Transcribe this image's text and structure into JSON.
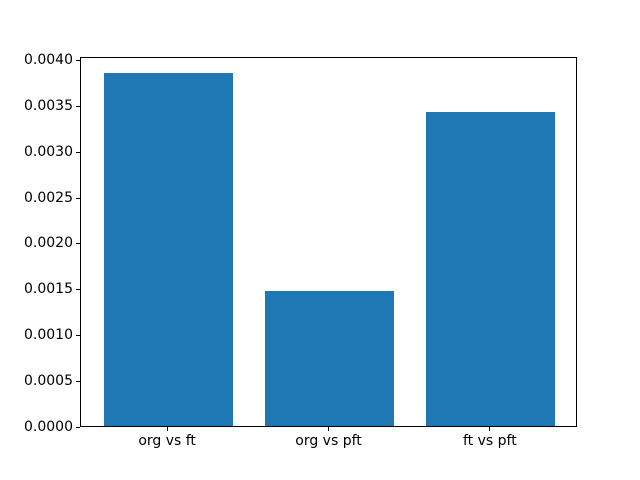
{
  "figure": {
    "background": "#ffffff"
  },
  "chart_data": {
    "type": "bar",
    "title": "",
    "xlabel": "",
    "ylabel": "",
    "categories": [
      "org vs ft",
      "org vs pft",
      "ft vs pft"
    ],
    "values": [
      0.00386,
      0.00148,
      0.00343
    ],
    "bar_color": "#1f77b4",
    "bar_width_units": 0.8,
    "xlim": [
      -0.54,
      2.54
    ],
    "ylim": [
      0,
      0.0040425
    ],
    "yticks": [
      0.0,
      0.0005,
      0.001,
      0.0015,
      0.002,
      0.0025,
      0.003,
      0.0035,
      0.004
    ],
    "ytick_labels": [
      "0.0000",
      "0.0005",
      "0.0010",
      "0.0015",
      "0.0020",
      "0.0025",
      "0.0030",
      "0.0035",
      "0.0040"
    ],
    "grid": false,
    "legend": "none",
    "spine_color": "#000000",
    "tick_color": "#000000"
  }
}
